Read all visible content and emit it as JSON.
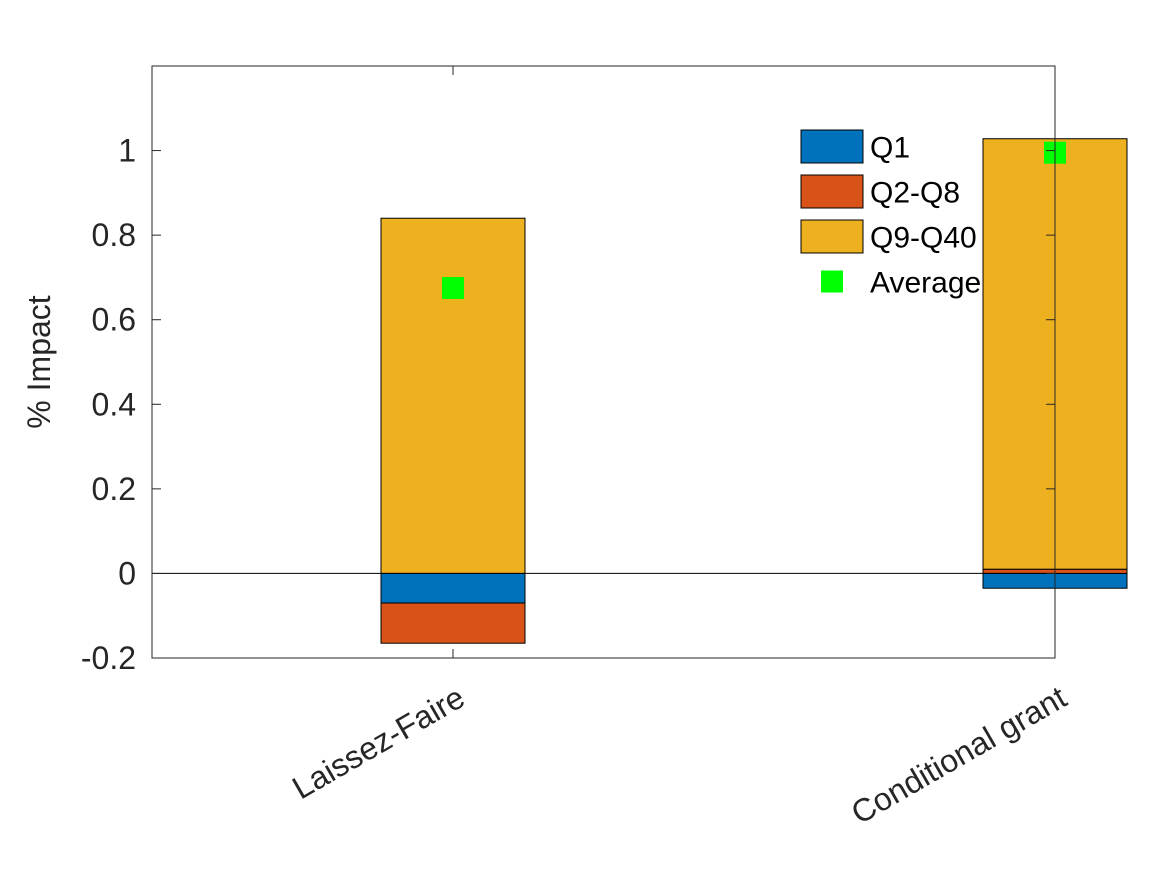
{
  "chart_data": {
    "type": "bar",
    "stacked": true,
    "title": "",
    "xlabel": "",
    "ylabel": "% Impact",
    "categories": [
      "Laissez-Faire",
      "Conditional grant"
    ],
    "xlim": [
      0.5,
      2.0
    ],
    "x_positions": [
      1.0,
      2.0
    ],
    "ylim": [
      -0.2,
      1.2
    ],
    "yticks": [
      -0.2,
      0,
      0.2,
      0.4,
      0.6,
      0.8,
      1
    ],
    "ytick_labels": [
      "-0.2",
      "0",
      "0.2",
      "0.4",
      "0.6",
      "0.8",
      "1"
    ],
    "grid": false,
    "legend_position": "top-right",
    "series": [
      {
        "name": "Q1",
        "color": "#0072BD",
        "values": [
          -0.07,
          -0.035
        ]
      },
      {
        "name": "Q2-Q8",
        "color": "#D95319",
        "values": [
          -0.095,
          0.01
        ]
      },
      {
        "name": "Q9-Q40",
        "color": "#EDB120",
        "values": [
          0.84,
          1.018
        ]
      }
    ],
    "markers": {
      "name": "Average",
      "color": "#00FF00",
      "marker": "square",
      "values": [
        0.675,
        0.995
      ]
    }
  }
}
